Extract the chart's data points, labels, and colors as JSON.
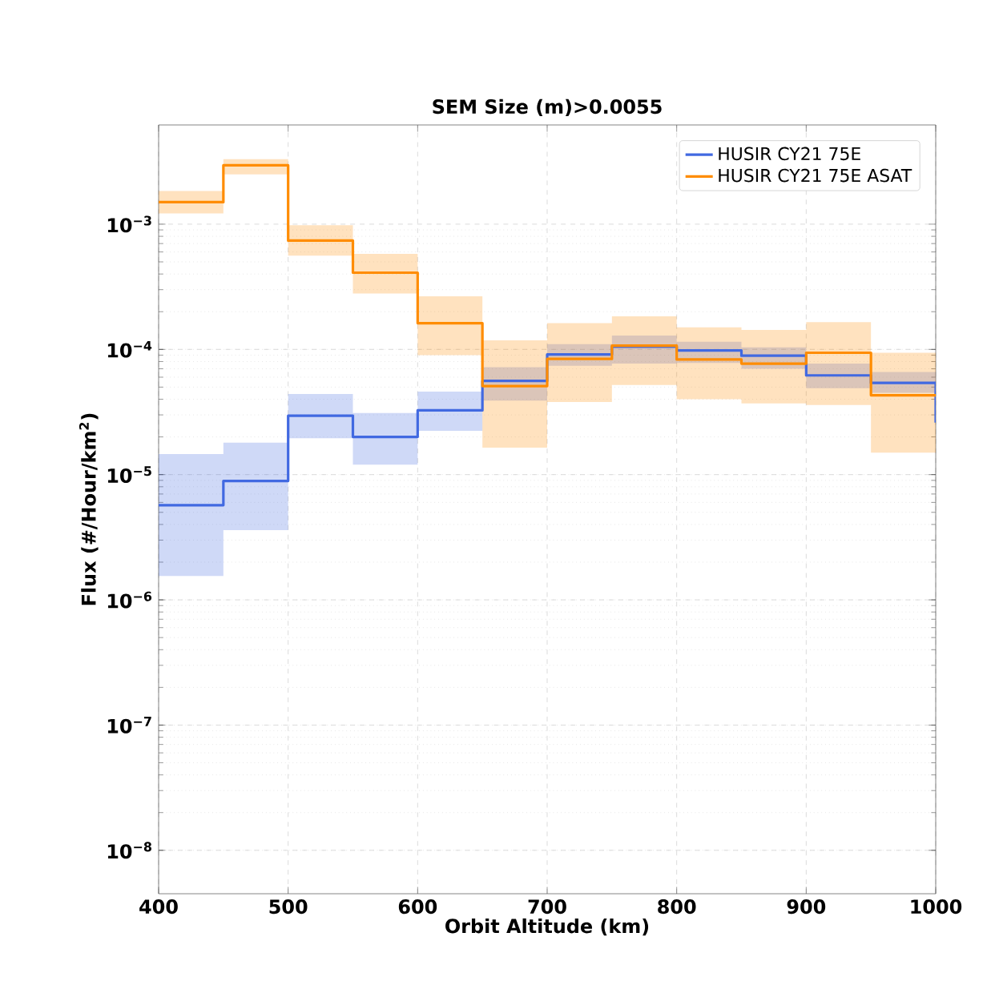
{
  "chart_data": {
    "type": "step",
    "title": "SEM Size (m)>0.0055",
    "xlabel": "Orbit Altitude (km)",
    "ylabel": "Flux (#/Hour/km$^{2}$)",
    "x": [
      400,
      450,
      500,
      550,
      600,
      650,
      700,
      750,
      800,
      850,
      900,
      950,
      1000
    ],
    "xlim": [
      400,
      1000
    ],
    "xticks": [
      400,
      500,
      600,
      700,
      800,
      900,
      1000
    ],
    "ylim": [
      4.5e-09,
      0.0062
    ],
    "yticks": [
      {
        "value": 1e-08,
        "label": "10$^{−8}$"
      },
      {
        "value": 1e-07,
        "label": "10$^{−7}$"
      },
      {
        "value": 1e-06,
        "label": "10$^{−6}$"
      },
      {
        "value": 1e-05,
        "label": "10$^{−5}$"
      },
      {
        "value": 0.0001,
        "label": "10$^{−4}$"
      },
      {
        "value": 0.001,
        "label": "10$^{−3}$"
      }
    ],
    "log": "y",
    "grid": true,
    "legend": "top right",
    "series": [
      {
        "name": "HUSIR CY21 75E",
        "color": "#4169e1",
        "values": [
          5.7e-06,
          8.9e-06,
          2.95e-05,
          2e-05,
          3.26e-05,
          5.6e-05,
          9.1e-05,
          0.000105,
          9.8e-05,
          8.9e-05,
          6.2e-05,
          5.4e-05,
          2.6e-05
        ],
        "lower": [
          1.55e-06,
          3.6e-06,
          1.95e-05,
          1.2e-05,
          2.24e-05,
          3.9e-05,
          7.4e-05,
          7.7e-05,
          7.8e-05,
          7e-05,
          4.9e-05,
          4.5e-05,
          4.5e-05
        ],
        "upper": [
          1.46e-05,
          1.8e-05,
          4.4e-05,
          3.1e-05,
          4.6e-05,
          7.2e-05,
          0.00011,
          0.000129,
          0.000115,
          0.000104,
          7.7e-05,
          6.6e-05,
          6.6e-05
        ]
      },
      {
        "name": "HUSIR CY21 75E ASAT",
        "color": "#ff8c00",
        "values": [
          0.0015,
          0.00295,
          0.00074,
          0.00041,
          0.000162,
          5.1e-05,
          8.4e-05,
          0.000107,
          8.3e-05,
          7.7e-05,
          9.4e-05,
          4.3e-05,
          4.3e-05
        ],
        "lower": [
          0.00122,
          0.0025,
          0.00056,
          0.00028,
          9e-05,
          1.64e-05,
          3.8e-05,
          5.2e-05,
          4e-05,
          3.7e-05,
          3.6e-05,
          1.5e-05,
          1.5e-05
        ],
        "upper": [
          0.00184,
          0.0033,
          0.00098,
          0.00058,
          0.000265,
          0.000118,
          0.000162,
          0.000184,
          0.00015,
          0.000143,
          0.000165,
          9.4e-05,
          9.4e-05
        ]
      }
    ]
  }
}
